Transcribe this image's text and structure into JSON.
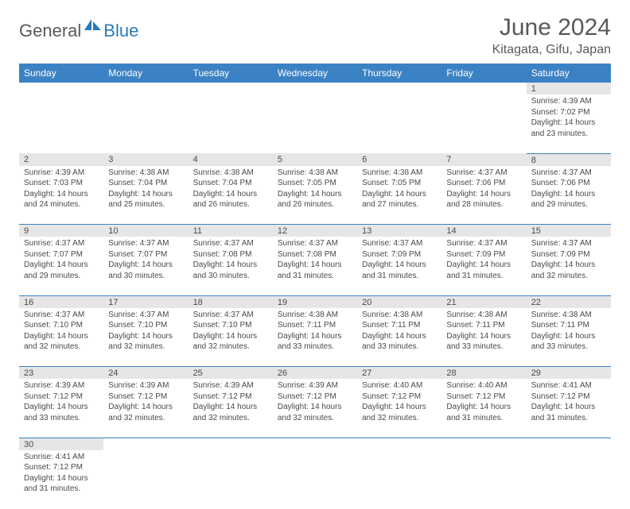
{
  "brand": {
    "part1": "General",
    "part2": "Blue",
    "logo_color": "#2a7ab9"
  },
  "header": {
    "title": "June 2024",
    "location": "Kitagata, Gifu, Japan"
  },
  "colors": {
    "header_bg": "#3b82c4",
    "header_text": "#ffffff",
    "daynum_bg": "#e6e6e6",
    "cell_border": "#3b82c4",
    "text": "#4a4a4a",
    "title_text": "#595959"
  },
  "weekday_labels": [
    "Sunday",
    "Monday",
    "Tuesday",
    "Wednesday",
    "Thursday",
    "Friday",
    "Saturday"
  ],
  "weeks": [
    {
      "nums": [
        "",
        "",
        "",
        "",
        "",
        "",
        "1"
      ],
      "cells": [
        "",
        "",
        "",
        "",
        "",
        "",
        "Sunrise: 4:39 AM\nSunset: 7:02 PM\nDaylight: 14 hours and 23 minutes."
      ]
    },
    {
      "nums": [
        "2",
        "3",
        "4",
        "5",
        "6",
        "7",
        "8"
      ],
      "cells": [
        "Sunrise: 4:39 AM\nSunset: 7:03 PM\nDaylight: 14 hours and 24 minutes.",
        "Sunrise: 4:38 AM\nSunset: 7:04 PM\nDaylight: 14 hours and 25 minutes.",
        "Sunrise: 4:38 AM\nSunset: 7:04 PM\nDaylight: 14 hours and 26 minutes.",
        "Sunrise: 4:38 AM\nSunset: 7:05 PM\nDaylight: 14 hours and 26 minutes.",
        "Sunrise: 4:38 AM\nSunset: 7:05 PM\nDaylight: 14 hours and 27 minutes.",
        "Sunrise: 4:37 AM\nSunset: 7:06 PM\nDaylight: 14 hours and 28 minutes.",
        "Sunrise: 4:37 AM\nSunset: 7:06 PM\nDaylight: 14 hours and 29 minutes."
      ]
    },
    {
      "nums": [
        "9",
        "10",
        "11",
        "12",
        "13",
        "14",
        "15"
      ],
      "cells": [
        "Sunrise: 4:37 AM\nSunset: 7:07 PM\nDaylight: 14 hours and 29 minutes.",
        "Sunrise: 4:37 AM\nSunset: 7:07 PM\nDaylight: 14 hours and 30 minutes.",
        "Sunrise: 4:37 AM\nSunset: 7:08 PM\nDaylight: 14 hours and 30 minutes.",
        "Sunrise: 4:37 AM\nSunset: 7:08 PM\nDaylight: 14 hours and 31 minutes.",
        "Sunrise: 4:37 AM\nSunset: 7:09 PM\nDaylight: 14 hours and 31 minutes.",
        "Sunrise: 4:37 AM\nSunset: 7:09 PM\nDaylight: 14 hours and 31 minutes.",
        "Sunrise: 4:37 AM\nSunset: 7:09 PM\nDaylight: 14 hours and 32 minutes."
      ]
    },
    {
      "nums": [
        "16",
        "17",
        "18",
        "19",
        "20",
        "21",
        "22"
      ],
      "cells": [
        "Sunrise: 4:37 AM\nSunset: 7:10 PM\nDaylight: 14 hours and 32 minutes.",
        "Sunrise: 4:37 AM\nSunset: 7:10 PM\nDaylight: 14 hours and 32 minutes.",
        "Sunrise: 4:37 AM\nSunset: 7:10 PM\nDaylight: 14 hours and 32 minutes.",
        "Sunrise: 4:38 AM\nSunset: 7:11 PM\nDaylight: 14 hours and 33 minutes.",
        "Sunrise: 4:38 AM\nSunset: 7:11 PM\nDaylight: 14 hours and 33 minutes.",
        "Sunrise: 4:38 AM\nSunset: 7:11 PM\nDaylight: 14 hours and 33 minutes.",
        "Sunrise: 4:38 AM\nSunset: 7:11 PM\nDaylight: 14 hours and 33 minutes."
      ]
    },
    {
      "nums": [
        "23",
        "24",
        "25",
        "26",
        "27",
        "28",
        "29"
      ],
      "cells": [
        "Sunrise: 4:39 AM\nSunset: 7:12 PM\nDaylight: 14 hours and 33 minutes.",
        "Sunrise: 4:39 AM\nSunset: 7:12 PM\nDaylight: 14 hours and 32 minutes.",
        "Sunrise: 4:39 AM\nSunset: 7:12 PM\nDaylight: 14 hours and 32 minutes.",
        "Sunrise: 4:39 AM\nSunset: 7:12 PM\nDaylight: 14 hours and 32 minutes.",
        "Sunrise: 4:40 AM\nSunset: 7:12 PM\nDaylight: 14 hours and 32 minutes.",
        "Sunrise: 4:40 AM\nSunset: 7:12 PM\nDaylight: 14 hours and 31 minutes.",
        "Sunrise: 4:41 AM\nSunset: 7:12 PM\nDaylight: 14 hours and 31 minutes."
      ]
    },
    {
      "nums": [
        "30",
        "",
        "",
        "",
        "",
        "",
        ""
      ],
      "cells": [
        "Sunrise: 4:41 AM\nSunset: 7:12 PM\nDaylight: 14 hours and 31 minutes.",
        "",
        "",
        "",
        "",
        "",
        ""
      ]
    }
  ]
}
